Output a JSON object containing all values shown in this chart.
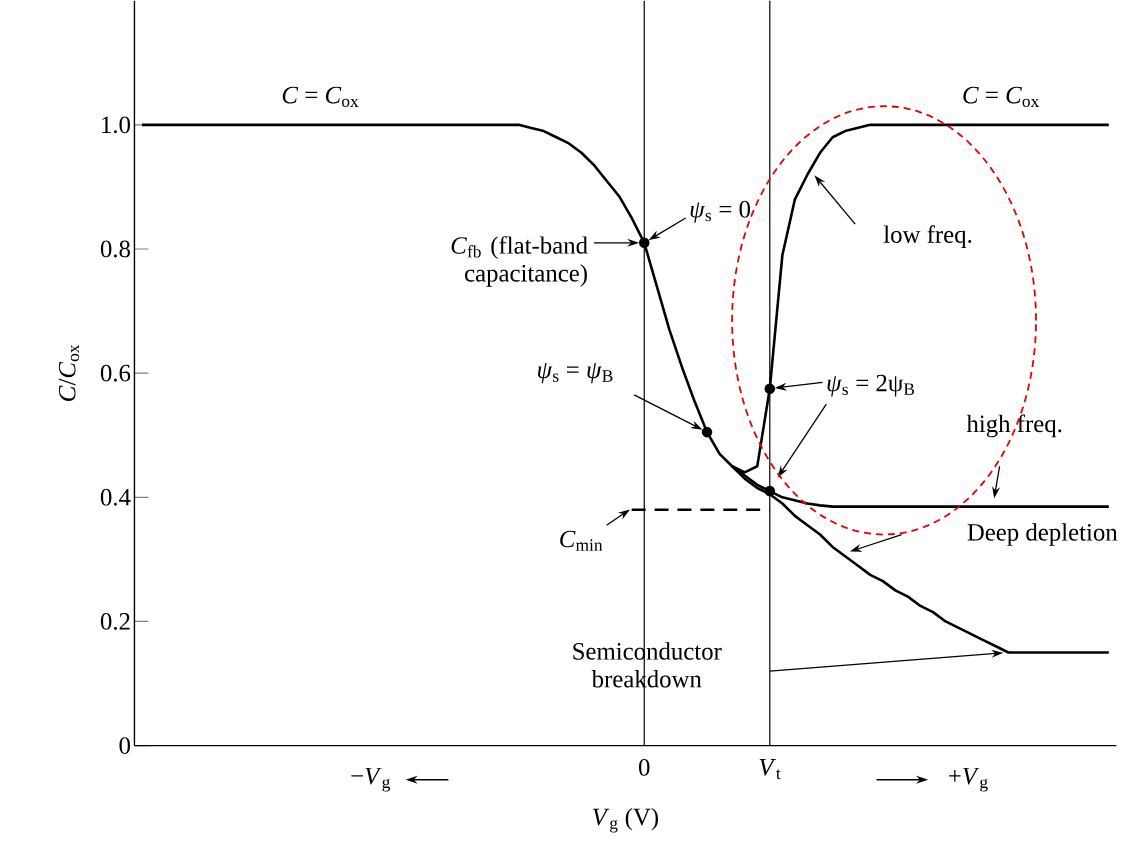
{
  "chart_data": {
    "type": "line",
    "xlabel": "*V*$_{g}$ (V)",
    "ylabel": "*C*/*C*$_{ox}$",
    "categories": [
      null,
      null,
      null,
      null,
      null,
      null,
      null,
      null,
      null,
      null,
      null,
      null,
      null,
      null,
      null,
      null,
      null,
      null,
      null,
      null,
      null,
      null,
      null,
      null,
      null,
      null,
      null,
      null,
      null,
      null,
      null,
      null,
      null,
      null,
      null,
      null,
      null,
      null,
      null,
      null,
      "0",
      null,
      null,
      null,
      null,
      null,
      null,
      null,
      null,
      null,
      "*V*$_{t}$",
      null,
      null,
      null,
      null,
      null,
      null,
      null,
      null,
      null,
      null,
      null,
      null,
      null,
      null,
      null,
      null,
      null,
      null,
      null,
      null,
      null,
      null,
      null,
      null,
      null,
      null,
      null
    ],
    "ylim": [
      0,
      1.2
    ],
    "yticks": [
      0,
      0.2,
      0.4,
      0.6,
      0.8,
      {
        "value": 1,
        "label": "1.0"
      }
    ],
    "ref_lines": [
      {
        "axis": "x",
        "value": "0"
      },
      {
        "axis": "x",
        "value": "*V*$_{t}$"
      }
    ],
    "series": [
      {
        "color": "#000000",
        "values": [
          1,
          1,
          1,
          1,
          1,
          1,
          1,
          1,
          1,
          1,
          1,
          1,
          1,
          1,
          1,
          1,
          1,
          1,
          1,
          1,
          1,
          1,
          1,
          1,
          1,
          1,
          1,
          1,
          1,
          1,
          1,
          0.995,
          0.99,
          0.98,
          0.97,
          0.955,
          0.935,
          0.91,
          0.885,
          0.85,
          0.81,
          0.74,
          0.67,
          0.61,
          0.555,
          0.505,
          0.47,
          0.45,
          0.44,
          0.45,
          0.575,
          0.79,
          0.88,
          0.92,
          0.955,
          0.98,
          0.99,
          0.995,
          1,
          1,
          1,
          1,
          1,
          1,
          1,
          1,
          1,
          1,
          1,
          1,
          1,
          1,
          1,
          1,
          1,
          1,
          1,
          1
        ]
      },
      {
        "color": "#000000",
        "values": [
          null,
          null,
          null,
          null,
          null,
          null,
          null,
          null,
          null,
          null,
          null,
          null,
          null,
          null,
          null,
          null,
          null,
          null,
          null,
          null,
          null,
          null,
          null,
          null,
          null,
          null,
          null,
          null,
          null,
          null,
          null,
          null,
          null,
          null,
          null,
          null,
          null,
          null,
          null,
          null,
          null,
          null,
          null,
          null,
          null,
          null,
          null,
          0.45,
          0.435,
          0.42,
          0.41,
          0.4,
          0.395,
          0.39,
          0.387,
          0.385,
          0.385,
          0.385,
          0.385,
          0.385,
          0.385,
          0.385,
          0.385,
          0.385,
          0.385,
          0.385,
          0.385,
          0.385,
          0.385,
          0.385,
          0.385,
          0.385,
          0.385,
          0.385,
          0.385,
          0.385,
          0.385,
          0.385
        ]
      },
      {
        "color": "#000000",
        "values": [
          null,
          null,
          null,
          null,
          null,
          null,
          null,
          null,
          null,
          null,
          null,
          null,
          null,
          null,
          null,
          null,
          null,
          null,
          null,
          null,
          null,
          null,
          null,
          null,
          null,
          null,
          null,
          null,
          null,
          null,
          null,
          null,
          null,
          null,
          null,
          null,
          null,
          null,
          null,
          null,
          null,
          null,
          null,
          null,
          null,
          null,
          null,
          0.45,
          0.43,
          0.415,
          0.405,
          0.39,
          0.37,
          0.355,
          0.34,
          0.32,
          0.305,
          0.29,
          0.275,
          0.265,
          0.25,
          0.24,
          0.225,
          0.215,
          0.2,
          0.19,
          0.18,
          0.17,
          0.16,
          0.15,
          0.15,
          0.15,
          0.15,
          0.15,
          0.15,
          0.15,
          0.15,
          0.15
        ]
      },
      {
        "color": "#000000",
        "line_style": "dashed",
        "values": [
          null,
          null,
          null,
          null,
          null,
          null,
          null,
          null,
          null,
          null,
          null,
          null,
          null,
          null,
          null,
          null,
          null,
          null,
          null,
          null,
          null,
          null,
          null,
          null,
          null,
          null,
          null,
          null,
          null,
          null,
          null,
          null,
          null,
          null,
          null,
          null,
          null,
          null,
          null,
          0.38,
          0.38,
          0.38,
          0.38,
          0.38,
          0.38,
          0.38,
          0.38,
          0.38,
          0.38,
          0.38,
          0.38,
          null,
          null,
          null,
          null,
          null,
          null,
          null,
          null,
          null,
          null,
          null,
          null,
          null,
          null,
          null,
          null,
          null,
          null,
          null,
          null,
          null,
          null,
          null,
          null,
          null,
          null,
          null
        ]
      },
      {
        "type": "scatter",
        "marker": "circle",
        "color": "#000000",
        "values": [
          null,
          null,
          null,
          null,
          null,
          null,
          null,
          null,
          null,
          null,
          null,
          null,
          null,
          null,
          null,
          null,
          null,
          null,
          null,
          null,
          null,
          null,
          null,
          null,
          null,
          null,
          null,
          null,
          null,
          null,
          null,
          null,
          null,
          null,
          null,
          null,
          null,
          null,
          null,
          null,
          0.81,
          null,
          null,
          null,
          null,
          0.505,
          null,
          null,
          null,
          null,
          0.575,
          null,
          null,
          null,
          null,
          null,
          null,
          null,
          null,
          null,
          null,
          null,
          null,
          null,
          null,
          null,
          null,
          null,
          null,
          null,
          null,
          null,
          null,
          null,
          null,
          null,
          null,
          null
        ]
      },
      {
        "type": "scatter",
        "marker": "circle",
        "color": "#000000",
        "values": [
          null,
          null,
          null,
          null,
          null,
          null,
          null,
          null,
          null,
          null,
          null,
          null,
          null,
          null,
          null,
          null,
          null,
          null,
          null,
          null,
          null,
          null,
          null,
          null,
          null,
          null,
          null,
          null,
          null,
          null,
          null,
          null,
          null,
          null,
          null,
          null,
          null,
          null,
          null,
          null,
          null,
          null,
          null,
          null,
          null,
          null,
          null,
          null,
          null,
          null,
          0.41,
          null,
          null,
          null,
          null,
          null,
          null,
          null,
          null,
          null,
          null,
          null,
          null,
          null,
          null,
          null,
          null,
          null,
          null,
          null,
          null,
          null,
          null,
          null,
          null,
          null,
          null,
          null
        ]
      }
    ],
    "annotations": [
      "*C* = *C*$_{ox}$",
      "*C* = *C*$_{ox}$",
      "*C*$_{fb}$ (flat-band capacitance)",
      "*ψ*$_{s}$ = 0",
      "*ψ*$_{s}$ = *ψ*$_{B}$",
      "*ψ*$_{s}$ = 2ψ$_{B}$",
      "*C*$_{min}$",
      "Semiconductor breakdown",
      "−*V*$_{g}$",
      "+*V*$_{g}$",
      "low freq.",
      "high freq.",
      "Deep depletion"
    ]
  }
}
